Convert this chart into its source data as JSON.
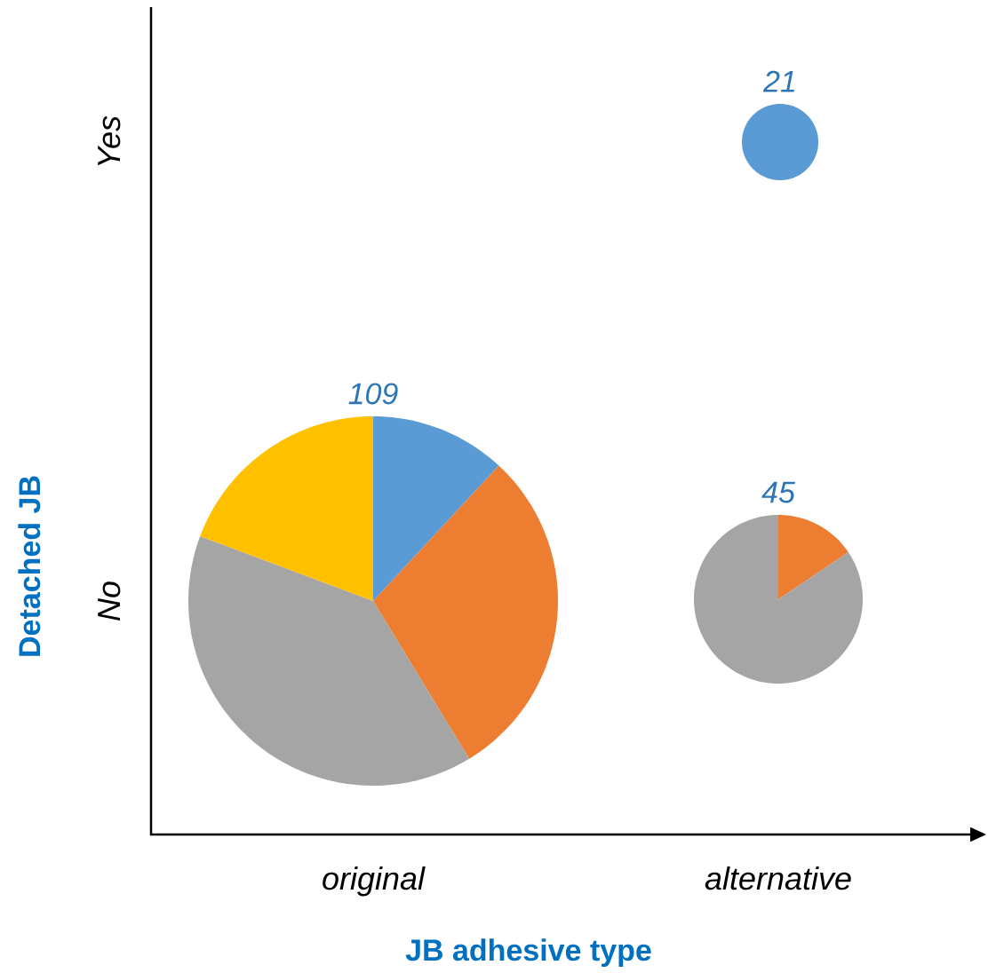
{
  "chart_data": [
    {
      "type": "other",
      "xlabel": "JB adhesive type",
      "ylabel": "Detached JB",
      "categories": [
        "original",
        "alternative"
      ],
      "y_categories": [
        "Yes",
        "No"
      ]
    },
    {
      "type": "pie",
      "title": "109",
      "categories": [
        null,
        null,
        null,
        null
      ],
      "values": [
        11.9,
        29.4,
        39.4,
        19.3
      ],
      "colors": [
        "#5b9bd5",
        "#ed7d31",
        "#a5a5a5",
        "#ffc000"
      ]
    },
    {
      "type": "pie",
      "title": "45",
      "categories": [
        null,
        null
      ],
      "values": [
        15.6,
        84.4
      ],
      "colors": [
        "#ed7d31",
        "#a5a5a5"
      ]
    },
    {
      "type": "pie",
      "title": "21",
      "categories": [
        null
      ],
      "values": [
        100
      ],
      "colors": [
        "#5b9bd5"
      ]
    }
  ]
}
